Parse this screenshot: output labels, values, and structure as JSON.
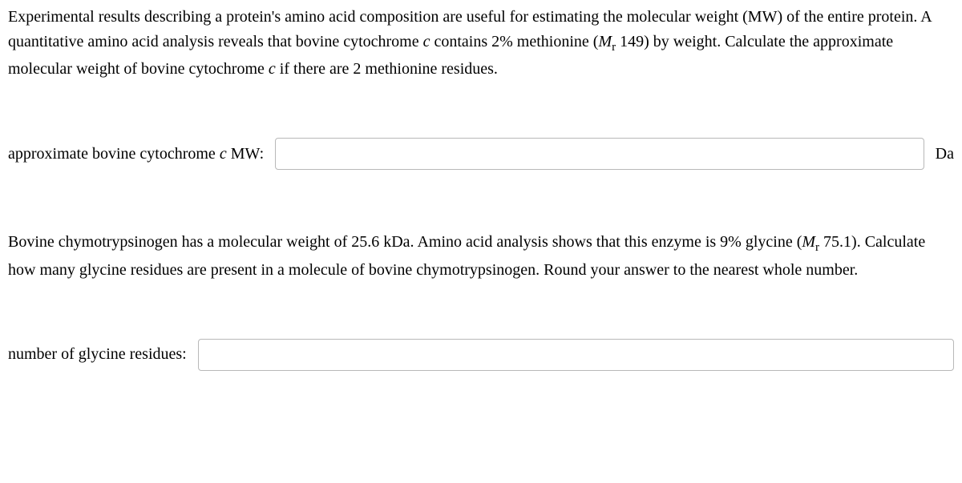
{
  "q1": {
    "p1_a": "Experimental results describing a protein's amino acid composition are useful for estimating the molecular weight (MW) of the entire protein. A quantitative amino acid analysis reveals that bovine cytochrome ",
    "p1_c": "c",
    "p1_b": " contains 2% methionine (",
    "p1_mr_m": "M",
    "p1_mr_r": "r",
    "p1_d": " 149) by weight. Calculate the approximate molecular weight of bovine cytochrome ",
    "p1_c2": "c",
    "p1_e": " if there are 2 methionine residues.",
    "label_a": "approximate bovine cytochrome ",
    "label_c": "c",
    "label_b": " MW:",
    "unit": "Da"
  },
  "q2": {
    "p2_a": "Bovine chymotrypsinogen has a molecular weight of 25.6 kDa. Amino acid analysis shows that this enzyme is 9% glycine (",
    "p2_mr_m": "M",
    "p2_mr_r": "r",
    "p2_b": " 75.1). Calculate how many glycine residues are present in a molecule of bovine chymotrypsinogen. Round your answer to the nearest whole number.",
    "label": "number of glycine residues:"
  }
}
